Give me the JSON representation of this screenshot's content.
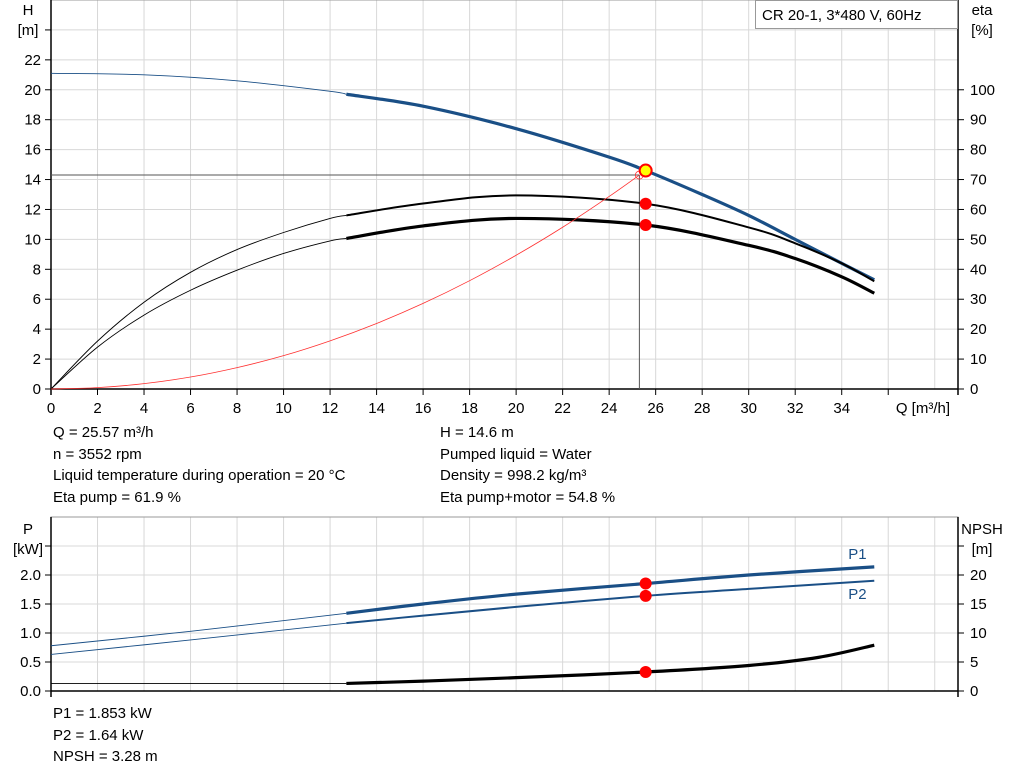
{
  "legend_box": "CR 20-1, 3*480 V, 60Hz",
  "info_top": {
    "left": [
      "Q = 25.57 m³/h",
      "n = 3552 rpm",
      "Liquid temperature during operation = 20 °C",
      "Eta pump = 61.9 %"
    ],
    "right": [
      "H = 14.6 m",
      "Pumped liquid = Water",
      "Density = 998.2 kg/m³",
      "Eta pump+motor = 54.8 %"
    ]
  },
  "info_bottom": [
    "P1 = 1.853 kW",
    "P2 = 1.64 kW",
    "NPSH = 3.28 m"
  ],
  "colors": {
    "blue": "#1a4f86",
    "black": "#000000",
    "system": "#ff3030",
    "point": "#ff0000",
    "duty_point": "#ffff00",
    "grid": "#d8d8d8"
  },
  "chart_data": [
    {
      "type": "line",
      "xlabel": "Q [m³/h]",
      "ylabel_left": [
        "H",
        "[m]"
      ],
      "ylabel_right": [
        "eta",
        "[%]"
      ],
      "xlim": [
        0,
        39
      ],
      "ylim_left": [
        0,
        26
      ],
      "ylim_right": [
        0,
        130
      ],
      "xticks": [
        0,
        2,
        4,
        6,
        8,
        10,
        12,
        14,
        16,
        18,
        20,
        22,
        24,
        26,
        28,
        30,
        32,
        34
      ],
      "yticks_left": [
        0,
        2,
        4,
        6,
        8,
        10,
        12,
        14,
        16,
        18,
        20,
        22
      ],
      "yticks_right": [
        0,
        10,
        20,
        30,
        40,
        50,
        60,
        70,
        80,
        90,
        100
      ],
      "grid": true,
      "series": [
        {
          "id": "head",
          "axis": "left",
          "color": "blue",
          "thick_from": 12.7,
          "x": [
            0,
            4,
            8,
            12,
            12.7,
            16,
            20,
            24,
            25.57,
            28,
            30,
            32,
            34,
            35.4
          ],
          "y": [
            21.1,
            21.0,
            20.6,
            19.9,
            19.7,
            18.9,
            17.4,
            15.5,
            14.6,
            13.0,
            11.6,
            10.0,
            8.4,
            7.3
          ]
        },
        {
          "id": "eta-pump",
          "axis": "right",
          "color": "black",
          "thick_from": 12.7,
          "x": [
            0,
            2,
            4,
            6,
            8,
            10,
            12,
            12.7,
            16,
            20,
            25.57,
            30,
            32,
            34,
            35.4
          ],
          "y": [
            0,
            16,
            29,
            39,
            46.6,
            52.3,
            57,
            58,
            62,
            64.7,
            61.9,
            54,
            48.7,
            42,
            36
          ]
        },
        {
          "id": "eta-pump-motor",
          "axis": "right",
          "color": "black",
          "thick_from": 12.7,
          "x": [
            0,
            2,
            4,
            6,
            8,
            10,
            12,
            12.7,
            16,
            20,
            25.57,
            30,
            32,
            34,
            35.4
          ],
          "y": [
            0,
            14,
            24.7,
            33,
            39.7,
            45.3,
            49.5,
            50.3,
            54.5,
            57,
            54.8,
            48,
            43.6,
            37.5,
            32
          ]
        },
        {
          "id": "system-curve",
          "axis": "left",
          "color": "system",
          "x": [
            0,
            2,
            4,
            6,
            8,
            10,
            12,
            14,
            16,
            18,
            20,
            22,
            24,
            25.3
          ],
          "y": [
            0,
            0.09,
            0.36,
            0.8,
            1.43,
            2.23,
            3.22,
            4.38,
            5.72,
            7.24,
            8.94,
            10.81,
            12.87,
            14.3
          ]
        }
      ],
      "duty_point": {
        "x": 25.57,
        "y": 14.6
      },
      "points": [
        {
          "x": 25.57,
          "y": 61.9,
          "axis": "right"
        },
        {
          "x": 25.57,
          "y": 54.8,
          "axis": "right"
        }
      ],
      "crosshair": {
        "x": 25.3,
        "y": 14.3
      }
    },
    {
      "type": "line",
      "ylabel_left": [
        "P",
        "[kW]"
      ],
      "ylabel_right": [
        "NPSH",
        "[m]"
      ],
      "xlim": [
        0,
        39
      ],
      "ylim_left": [
        0,
        3
      ],
      "ylim_right": [
        0,
        30
      ],
      "yticks_left": [
        "0.0",
        "0.5",
        "1.0",
        "1.5",
        "2.0"
      ],
      "yticks_right": [
        0,
        5,
        10,
        15,
        20
      ],
      "grid": true,
      "series": [
        {
          "id": "P1",
          "name": "P1",
          "axis": "left",
          "color": "blue",
          "thick_from": 12.7,
          "x": [
            0,
            6,
            12.7,
            16,
            20,
            25.57,
            30,
            35.4
          ],
          "y": [
            0.78,
            1.03,
            1.34,
            1.5,
            1.67,
            1.853,
            2.0,
            2.14
          ]
        },
        {
          "id": "P2",
          "name": "P2",
          "axis": "left",
          "color": "blue",
          "thick_from": 12.7,
          "x": [
            0,
            6,
            12.7,
            16,
            20,
            25.57,
            30,
            35.4
          ],
          "y": [
            0.63,
            0.88,
            1.17,
            1.3,
            1.45,
            1.64,
            1.76,
            1.9
          ]
        },
        {
          "id": "NPSH",
          "axis": "right",
          "color": "black",
          "thick_from": 12.7,
          "x": [
            0,
            12.7,
            16,
            20,
            25.57,
            30,
            33,
            35.4
          ],
          "y": [
            1.3,
            1.3,
            1.7,
            2.3,
            3.28,
            4.4,
            5.8,
            7.9
          ]
        }
      ],
      "points": [
        {
          "x": 25.57,
          "y": 1.853,
          "axis": "left"
        },
        {
          "x": 25.57,
          "y": 1.64,
          "axis": "left"
        },
        {
          "x": 25.57,
          "y": 3.28,
          "axis": "right"
        }
      ]
    }
  ]
}
